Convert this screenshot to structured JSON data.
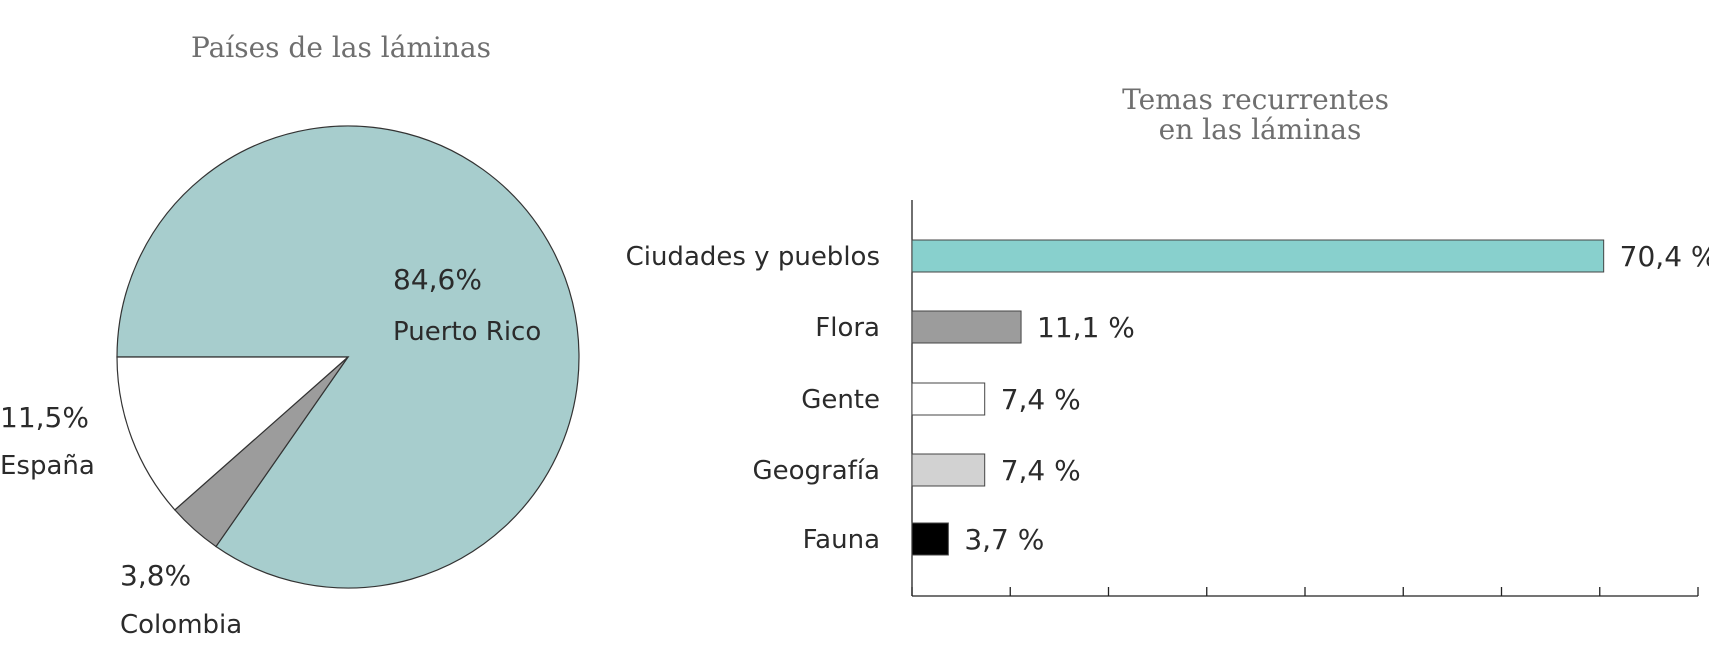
{
  "chart_data": [
    {
      "type": "pie",
      "title": "Países de las láminas",
      "slices": [
        {
          "label": "Puerto Rico",
          "value": 84.6,
          "value_label": "84,6%",
          "color": "#a7cdcd"
        },
        {
          "label": "Colombia",
          "value": 3.8,
          "value_label": "3,8%",
          "color": "#9c9c9c"
        },
        {
          "label": "España",
          "value": 11.5,
          "value_label": "11,5%",
          "color": "#ffffff"
        }
      ]
    },
    {
      "type": "bar",
      "orientation": "horizontal",
      "title_lines": [
        "Temas recurrentes",
        "en las láminas"
      ],
      "categories": [
        "Ciudades y pueblos",
        "Flora",
        "Gente",
        "Geografía",
        "Fauna"
      ],
      "values": [
        70.4,
        11.1,
        7.4,
        7.4,
        3.7
      ],
      "value_labels": [
        "70,4 %",
        "11,1 %",
        "7,4 %",
        "7,4 %",
        "3,7 %"
      ],
      "colors": [
        "#88d0cd",
        "#9c9c9c",
        "#ffffff",
        "#d2d2d2",
        "#000000"
      ],
      "xlim": [
        0,
        80
      ],
      "x_tick_step": 10,
      "grid": false
    }
  ]
}
